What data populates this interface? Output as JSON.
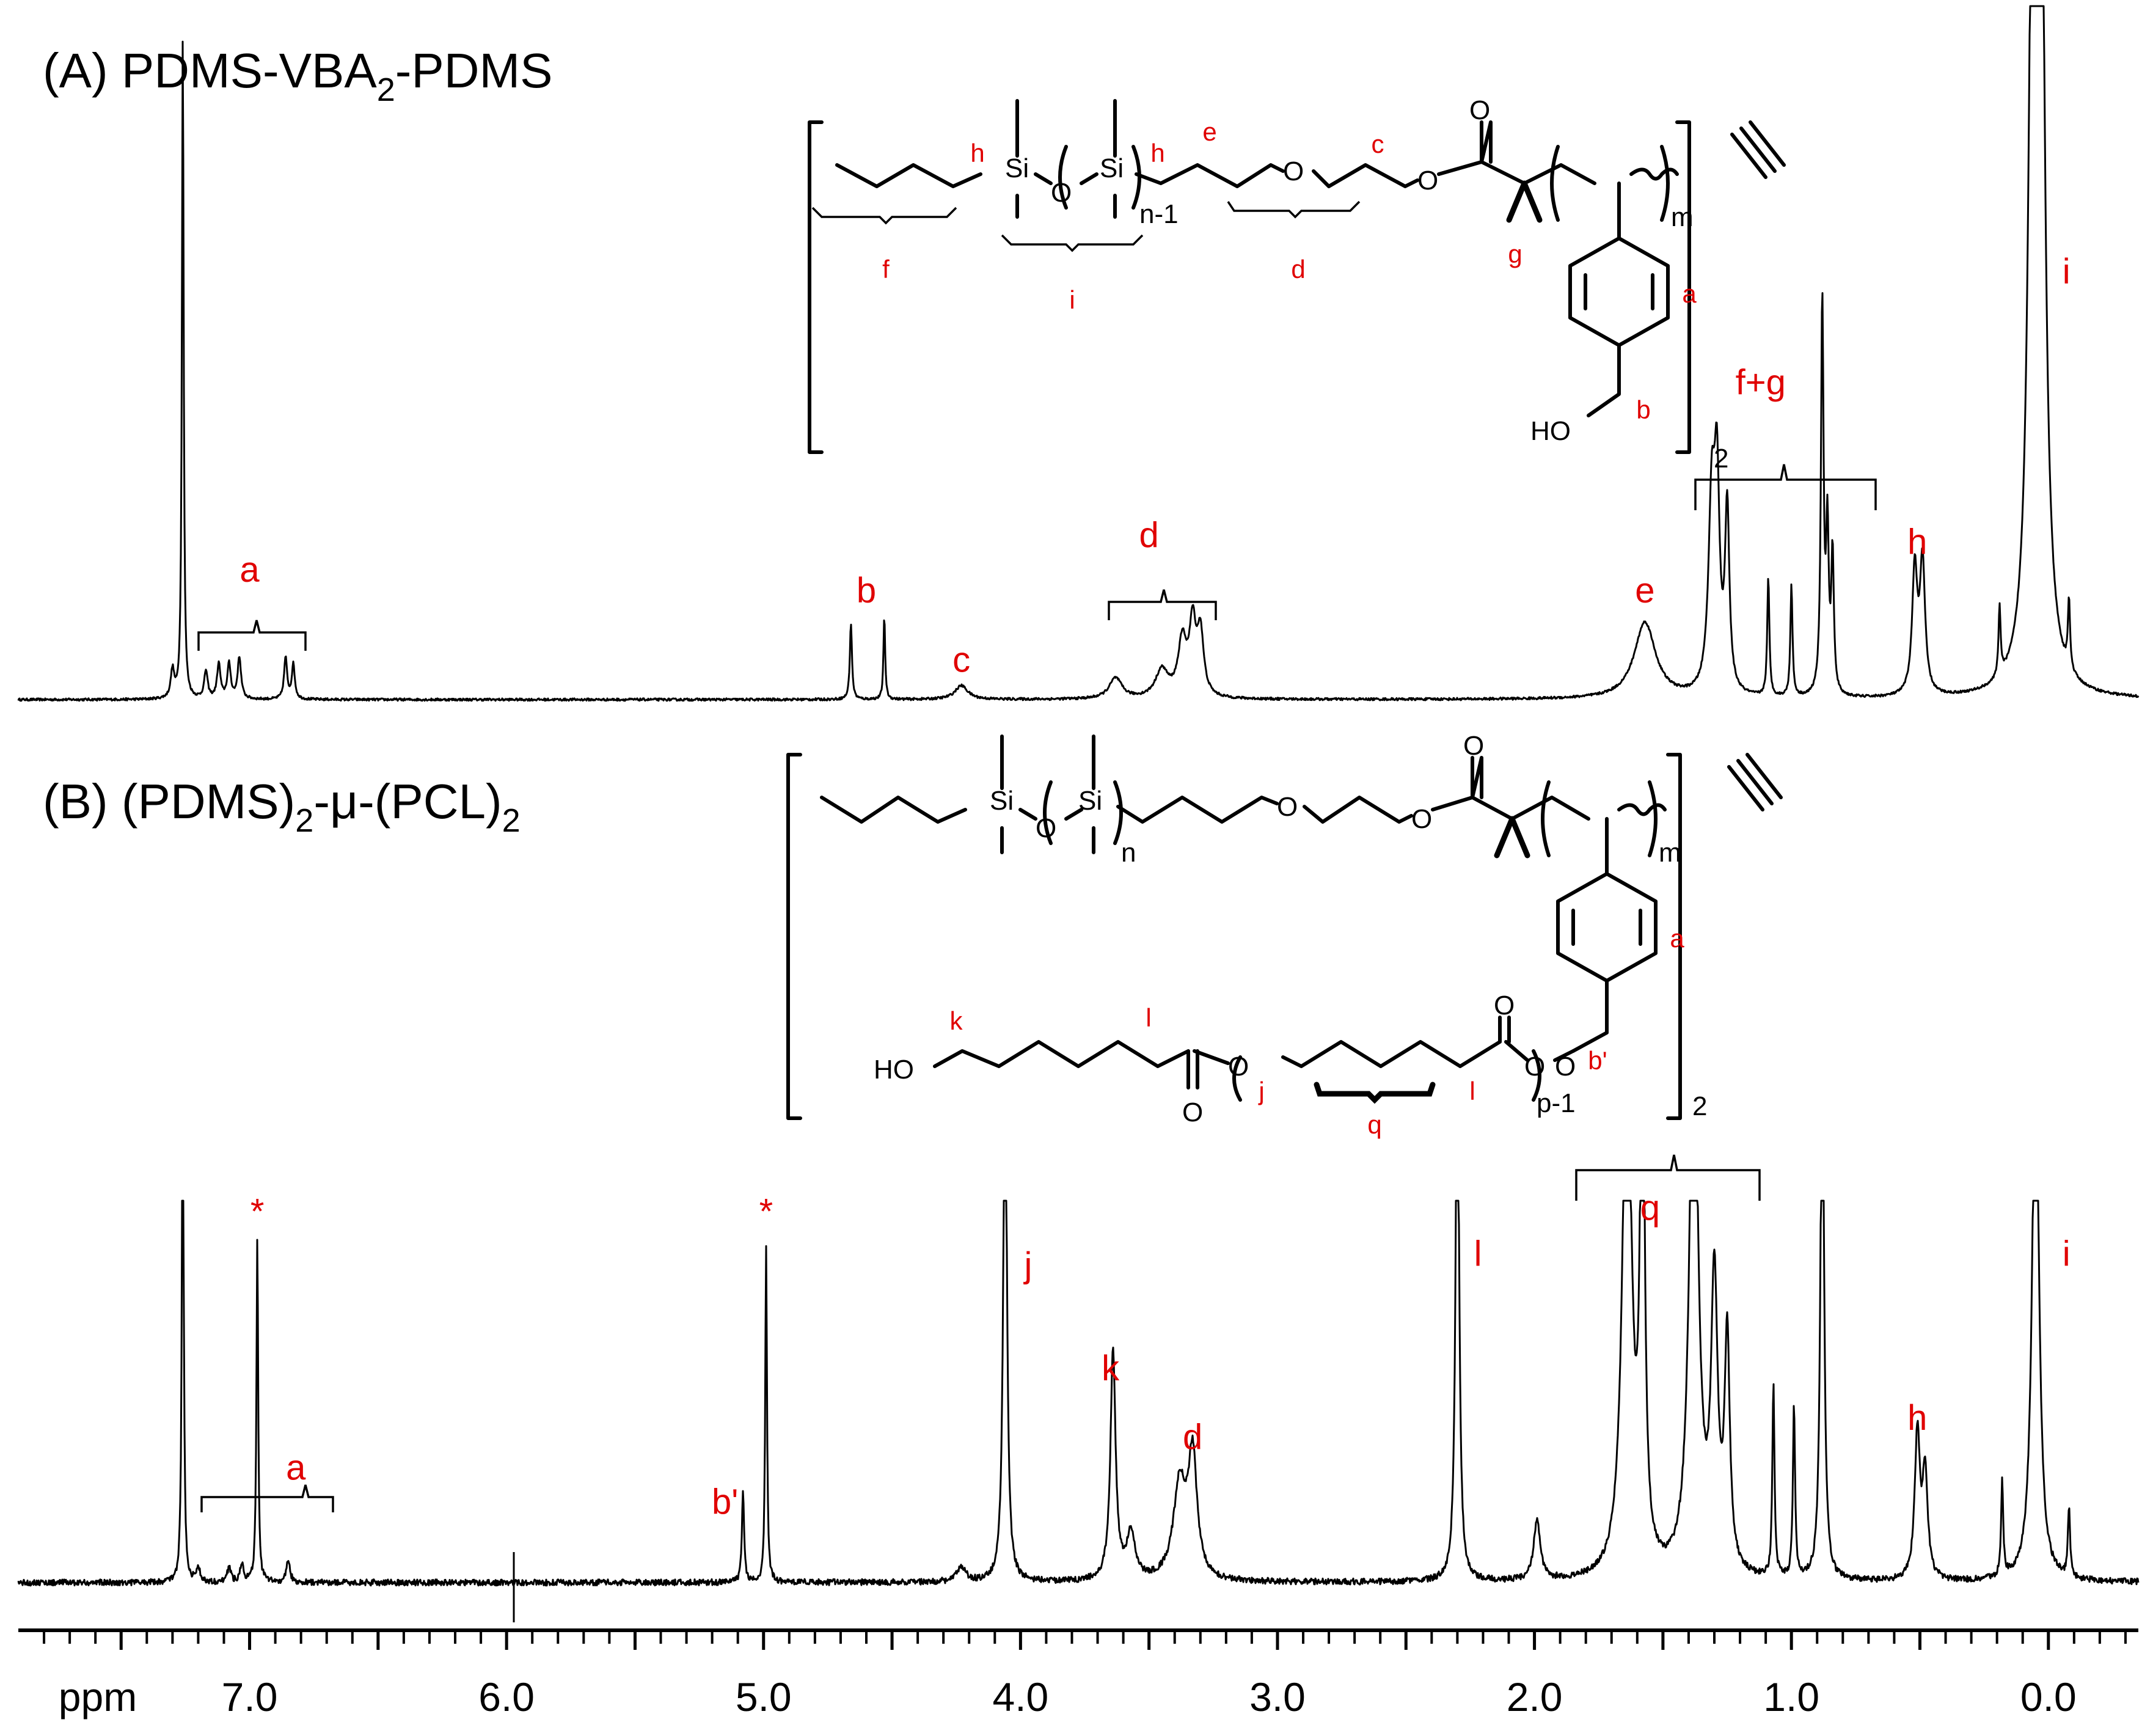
{
  "chart_data": [
    {
      "type": "line",
      "title": "(A) PDMS-VBA",
      "title_sub": "2",
      "title_tail": "-PDMS",
      "x_unit": "ppm",
      "xlim": [
        7.9,
        -0.35
      ],
      "ylim": [
        0,
        100
      ],
      "peaks": [
        {
          "ppm": 7.26,
          "h": 96,
          "w": 0.004
        },
        {
          "ppm": 7.3,
          "h": 4,
          "w": 0.008
        },
        {
          "ppm": 7.17,
          "h": 4,
          "w": 0.008
        },
        {
          "ppm": 7.12,
          "h": 5,
          "w": 0.008
        },
        {
          "ppm": 7.08,
          "h": 5,
          "w": 0.008
        },
        {
          "ppm": 7.04,
          "h": 6,
          "w": 0.008
        },
        {
          "ppm": 6.86,
          "h": 6,
          "w": 0.007
        },
        {
          "ppm": 6.83,
          "h": 5,
          "w": 0.007
        },
        {
          "ppm": 4.66,
          "h": 11,
          "w": 0.005
        },
        {
          "ppm": 4.53,
          "h": 12,
          "w": 0.004
        },
        {
          "ppm": 4.23,
          "h": 2,
          "w": 0.03
        },
        {
          "ppm": 3.63,
          "h": 3,
          "w": 0.03
        },
        {
          "ppm": 3.45,
          "h": 4,
          "w": 0.03
        },
        {
          "ppm": 3.37,
          "h": 8,
          "w": 0.02
        },
        {
          "ppm": 3.33,
          "h": 10,
          "w": 0.015
        },
        {
          "ppm": 3.3,
          "h": 9,
          "w": 0.015
        },
        {
          "ppm": 1.57,
          "h": 11,
          "w": 0.05
        },
        {
          "ppm": 1.31,
          "h": 27,
          "w": 0.015
        },
        {
          "ppm": 1.29,
          "h": 28,
          "w": 0.012
        },
        {
          "ppm": 1.25,
          "h": 26,
          "w": 0.01
        },
        {
          "ppm": 1.09,
          "h": 17,
          "w": 0.005
        },
        {
          "ppm": 1.0,
          "h": 16,
          "w": 0.005
        },
        {
          "ppm": 0.88,
          "h": 57,
          "w": 0.006
        },
        {
          "ppm": 0.86,
          "h": 23,
          "w": 0.006
        },
        {
          "ppm": 0.84,
          "h": 20,
          "w": 0.006
        },
        {
          "ppm": 0.52,
          "h": 18,
          "w": 0.012
        },
        {
          "ppm": 0.49,
          "h": 19,
          "w": 0.012
        },
        {
          "ppm": 0.19,
          "h": 10,
          "w": 0.005
        },
        {
          "ppm": 0.06,
          "h": 120,
          "w": 0.018
        },
        {
          "ppm": 0.03,
          "h": 120,
          "w": 0.018
        },
        {
          "ppm": -0.08,
          "h": 10,
          "w": 0.005
        }
      ],
      "annotations": [
        {
          "text": "a",
          "ppm": 7.0,
          "pct": 17
        },
        {
          "text": "b",
          "ppm": 4.6,
          "pct": 14
        },
        {
          "text": "c",
          "ppm": 4.23,
          "pct": 4
        },
        {
          "text": "d",
          "ppm": 3.5,
          "pct": 22
        },
        {
          "text": "e",
          "ppm": 1.57,
          "pct": 14
        },
        {
          "text": "f+g",
          "ppm": 1.12,
          "pct": 44
        },
        {
          "text": "h",
          "ppm": 0.51,
          "pct": 21
        },
        {
          "text": "i",
          "ppm": -0.07,
          "pct": 60
        }
      ],
      "structure": {
        "labels": [
          "f",
          "h",
          "i",
          "h",
          "e",
          "d",
          "c",
          "g",
          "a",
          "b"
        ],
        "atoms": [
          "Si",
          "O",
          "Si",
          "O",
          "O",
          "O",
          "HO"
        ],
        "subscripts": [
          "n-1",
          "m",
          "2"
        ]
      }
    },
    {
      "type": "line",
      "title": "(B) (PDMS)",
      "title_sub": "2",
      "title_mid": "-μ-(PCL)",
      "title_sub2": "2",
      "x_unit": "ppm",
      "xlim": [
        7.9,
        -0.35
      ],
      "ylim": [
        0,
        100
      ],
      "peaks": [
        {
          "ppm": 7.26,
          "h": 150,
          "w": 0.004
        },
        {
          "ppm": 7.2,
          "h": 4,
          "w": 0.008
        },
        {
          "ppm": 7.08,
          "h": 4,
          "w": 0.008
        },
        {
          "ppm": 7.03,
          "h": 5,
          "w": 0.008
        },
        {
          "ppm": 6.97,
          "h": 90,
          "w": 0.004
        },
        {
          "ppm": 6.85,
          "h": 6,
          "w": 0.008
        },
        {
          "ppm": 5.08,
          "h": 24,
          "w": 0.005
        },
        {
          "ppm": 4.99,
          "h": 88,
          "w": 0.004
        },
        {
          "ppm": 4.23,
          "h": 4,
          "w": 0.02
        },
        {
          "ppm": 4.06,
          "h": 150,
          "w": 0.008
        },
        {
          "ppm": 3.64,
          "h": 60,
          "w": 0.012
        },
        {
          "ppm": 3.57,
          "h": 12,
          "w": 0.02
        },
        {
          "ppm": 3.38,
          "h": 25,
          "w": 0.03
        },
        {
          "ppm": 3.33,
          "h": 31,
          "w": 0.02
        },
        {
          "ppm": 2.3,
          "h": 150,
          "w": 0.008
        },
        {
          "ppm": 1.99,
          "h": 16,
          "w": 0.015
        },
        {
          "ppm": 1.64,
          "h": 150,
          "w": 0.02
        },
        {
          "ppm": 1.58,
          "h": 150,
          "w": 0.01
        },
        {
          "ppm": 1.38,
          "h": 150,
          "w": 0.02
        },
        {
          "ppm": 1.3,
          "h": 75,
          "w": 0.015
        },
        {
          "ppm": 1.25,
          "h": 60,
          "w": 0.012
        },
        {
          "ppm": 1.07,
          "h": 50,
          "w": 0.005
        },
        {
          "ppm": 0.99,
          "h": 45,
          "w": 0.005
        },
        {
          "ppm": 0.88,
          "h": 150,
          "w": 0.008
        },
        {
          "ppm": 0.51,
          "h": 38,
          "w": 0.012
        },
        {
          "ppm": 0.48,
          "h": 28,
          "w": 0.012
        },
        {
          "ppm": 0.18,
          "h": 25,
          "w": 0.005
        },
        {
          "ppm": 0.05,
          "h": 150,
          "w": 0.015
        },
        {
          "ppm": -0.08,
          "h": 18,
          "w": 0.005
        }
      ],
      "annotations": [
        {
          "text": "*",
          "ppm": 6.97,
          "pct": 94,
          "color": "#999999"
        },
        {
          "text": "*",
          "ppm": 4.99,
          "pct": 94,
          "color": "#999999"
        },
        {
          "text": "a",
          "ppm": 6.82,
          "pct": 27
        },
        {
          "text": "b'",
          "ppm": 5.15,
          "pct": 18
        },
        {
          "text": "j",
          "ppm": 3.97,
          "pct": 80
        },
        {
          "text": "k",
          "ppm": 3.65,
          "pct": 53
        },
        {
          "text": "d",
          "ppm": 3.33,
          "pct": 35
        },
        {
          "text": "l",
          "ppm": 2.22,
          "pct": 83
        },
        {
          "text": "q",
          "ppm": 1.55,
          "pct": 95
        },
        {
          "text": "h",
          "ppm": 0.51,
          "pct": 40
        },
        {
          "text": "i",
          "ppm": -0.07,
          "pct": 83
        }
      ],
      "structure": {
        "labels": [
          "a",
          "k",
          "l",
          "j",
          "q",
          "l",
          "b'"
        ],
        "atoms": [
          "Si",
          "O",
          "Si",
          "O",
          "O",
          "O",
          "HO",
          "O",
          "O",
          "O",
          "O",
          "O"
        ],
        "subscripts": [
          "n",
          "m",
          "p-1",
          "2"
        ]
      }
    }
  ],
  "x_axis": {
    "label": "ppm",
    "ticks": [
      {
        "value": 7.0,
        "label": "7.0"
      },
      {
        "value": 6.0,
        "label": "6.0"
      },
      {
        "value": 5.0,
        "label": "5.0"
      },
      {
        "value": 4.0,
        "label": "4.0"
      },
      {
        "value": 3.0,
        "label": "3.0"
      },
      {
        "value": 2.0,
        "label": "2.0"
      },
      {
        "value": 1.0,
        "label": "1.0"
      },
      {
        "value": 0.0,
        "label": "0.0"
      }
    ]
  }
}
